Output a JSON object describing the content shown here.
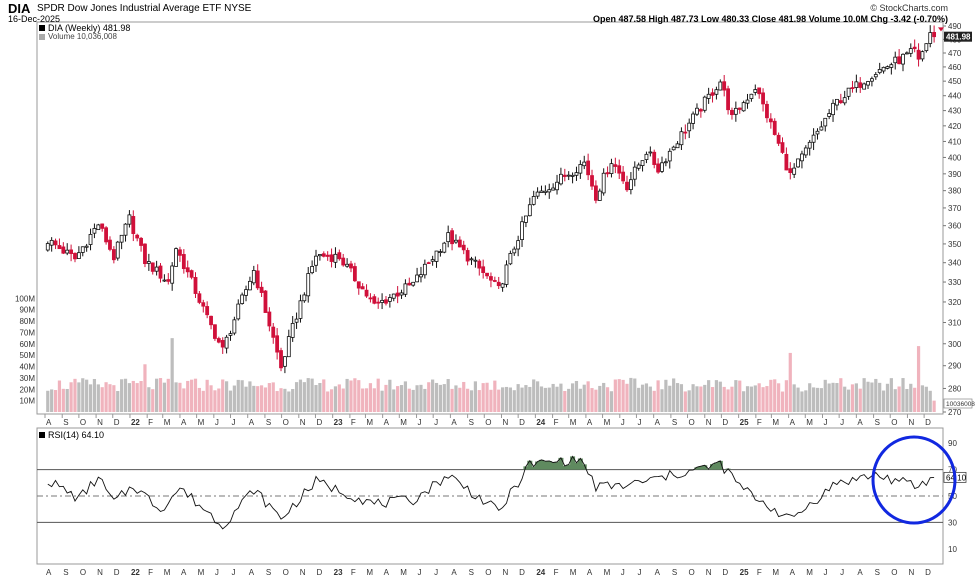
{
  "header": {
    "symbol": "DIA",
    "name": "SPDR Dow Jones Industrial Average ETF",
    "exchange": "NYSE",
    "date": "16-Dec-2025",
    "credit": "© StockCharts.com",
    "quote_line": "Open 487.58   High 487.73   Low 480.33   Close 481.98   Volume 10.0M   Chg -3.42 (-0.70%)",
    "legend_price": "DIA (Weekly) 481.98",
    "legend_volume": "Volume 10,036,008",
    "legend_rsi": "RSI(14) 64.10"
  },
  "colors": {
    "up": "#111111",
    "down": "#d0103a",
    "volume_up": "#bdbdbd",
    "volume_down": "#f0b3bd",
    "rsi_fill": "#5f8a5f",
    "circle": "#1128e0",
    "last_price_tag": "#222222"
  },
  "chart_data": [
    {
      "type": "candlestick",
      "title": "DIA (Weekly)",
      "ylim": [
        270,
        490
      ],
      "y_ticks": [
        270,
        280,
        290,
        300,
        310,
        320,
        330,
        340,
        350,
        360,
        370,
        380,
        390,
        400,
        410,
        420,
        430,
        440,
        450,
        460,
        470,
        480,
        490
      ],
      "last_price_label": "481.98",
      "scale": "log",
      "x_labels": [
        "A",
        "S",
        "O",
        "N",
        "D",
        "22",
        "F",
        "M",
        "A",
        "M",
        "J",
        "J",
        "A",
        "S",
        "O",
        "N",
        "D",
        "23",
        "F",
        "M",
        "A",
        "M",
        "J",
        "J",
        "A",
        "S",
        "O",
        "N",
        "D",
        "24",
        "F",
        "M",
        "A",
        "M",
        "J",
        "J",
        "A",
        "S",
        "O",
        "N",
        "D",
        "25",
        "F",
        "M",
        "A",
        "M",
        "J",
        "J",
        "A",
        "S",
        "O",
        "N",
        "D"
      ],
      "anchors": [
        {
          "date": "2021-08-06",
          "close": 352
        },
        {
          "date": "2021-09-24",
          "close": 342
        },
        {
          "date": "2021-11-05",
          "close": 361
        },
        {
          "date": "2021-12-03",
          "close": 343
        },
        {
          "date": "2021-12-31",
          "close": 364
        },
        {
          "date": "2022-01-28",
          "close": 341
        },
        {
          "date": "2022-03-11",
          "close": 330
        },
        {
          "date": "2022-03-25",
          "close": 348
        },
        {
          "date": "2022-05-20",
          "close": 312
        },
        {
          "date": "2022-06-17",
          "close": 297
        },
        {
          "date": "2022-08-12",
          "close": 336
        },
        {
          "date": "2022-09-30",
          "close": 289
        },
        {
          "date": "2022-12-02",
          "close": 344
        },
        {
          "date": "2023-01-13",
          "close": 343
        },
        {
          "date": "2023-03-17",
          "close": 318
        },
        {
          "date": "2023-05-26",
          "close": 329
        },
        {
          "date": "2023-07-28",
          "close": 354
        },
        {
          "date": "2023-10-27",
          "close": 326
        },
        {
          "date": "2023-12-29",
          "close": 376
        },
        {
          "date": "2024-03-29",
          "close": 397
        },
        {
          "date": "2024-04-19",
          "close": 377
        },
        {
          "date": "2024-05-17",
          "close": 398
        },
        {
          "date": "2024-06-14",
          "close": 383
        },
        {
          "date": "2024-07-19",
          "close": 404
        },
        {
          "date": "2024-08-09",
          "close": 393
        },
        {
          "date": "2024-11-29",
          "close": 450
        },
        {
          "date": "2024-12-20",
          "close": 425
        },
        {
          "date": "2025-01-31",
          "close": 446
        },
        {
          "date": "2025-04-04",
          "close": 389
        },
        {
          "date": "2025-04-25",
          "close": 400
        },
        {
          "date": "2025-06-27",
          "close": 436
        },
        {
          "date": "2025-08-29",
          "close": 455
        },
        {
          "date": "2025-11-14",
          "close": 471
        },
        {
          "date": "2025-11-21",
          "close": 463
        },
        {
          "date": "2025-12-12",
          "close": 485
        },
        {
          "date": "2025-12-19",
          "close": 481.98
        }
      ]
    },
    {
      "type": "bar",
      "title": "Volume",
      "y_ticks": [
        "10M",
        "20M",
        "30M",
        "40M",
        "50M",
        "60M",
        "70M",
        "80M",
        "90M",
        "100M"
      ],
      "tick_values": [
        10,
        20,
        30,
        40,
        50,
        60,
        70,
        80,
        90,
        100
      ],
      "ylim": [
        0,
        110
      ],
      "unit": "millions",
      "last_volume_label": "10036008",
      "base_volume": 18,
      "spikes": [
        {
          "date": "2022-03-18",
          "volume": 65
        },
        {
          "date": "2022-01-28",
          "volume": 42
        },
        {
          "date": "2025-04-04",
          "volume": 52
        },
        {
          "date": "2025-11-21",
          "volume": 58
        },
        {
          "date": "2024-06-21",
          "volume": 30
        }
      ]
    },
    {
      "type": "line",
      "title": "RSI(14)",
      "ylim": [
        0,
        100
      ],
      "y_ticks": [
        10,
        30,
        50,
        70,
        90
      ],
      "hlines": [
        30,
        50,
        70
      ],
      "last_value": 64.1,
      "anchors": [
        {
          "date": "2021-08-06",
          "value": 62
        },
        {
          "date": "2021-10-01",
          "value": 48
        },
        {
          "date": "2021-11-05",
          "value": 64
        },
        {
          "date": "2021-12-03",
          "value": 45
        },
        {
          "date": "2022-01-07",
          "value": 58
        },
        {
          "date": "2022-02-25",
          "value": 40
        },
        {
          "date": "2022-04-01",
          "value": 56
        },
        {
          "date": "2022-06-17",
          "value": 28
        },
        {
          "date": "2022-08-12",
          "value": 55
        },
        {
          "date": "2022-09-30",
          "value": 33
        },
        {
          "date": "2022-12-02",
          "value": 61
        },
        {
          "date": "2023-03-17",
          "value": 44
        },
        {
          "date": "2023-05-26",
          "value": 47
        },
        {
          "date": "2023-07-28",
          "value": 66
        },
        {
          "date": "2023-10-27",
          "value": 38
        },
        {
          "date": "2023-12-22",
          "value": 74
        },
        {
          "date": "2024-03-22",
          "value": 78
        },
        {
          "date": "2024-04-19",
          "value": 57
        },
        {
          "date": "2024-06-14",
          "value": 58
        },
        {
          "date": "2024-11-29",
          "value": 74
        },
        {
          "date": "2025-01-10",
          "value": 55
        },
        {
          "date": "2025-04-04",
          "value": 32
        },
        {
          "date": "2025-06-27",
          "value": 60
        },
        {
          "date": "2025-09-05",
          "value": 66
        },
        {
          "date": "2025-11-21",
          "value": 57
        },
        {
          "date": "2025-12-19",
          "value": 64.1
        }
      ]
    }
  ]
}
